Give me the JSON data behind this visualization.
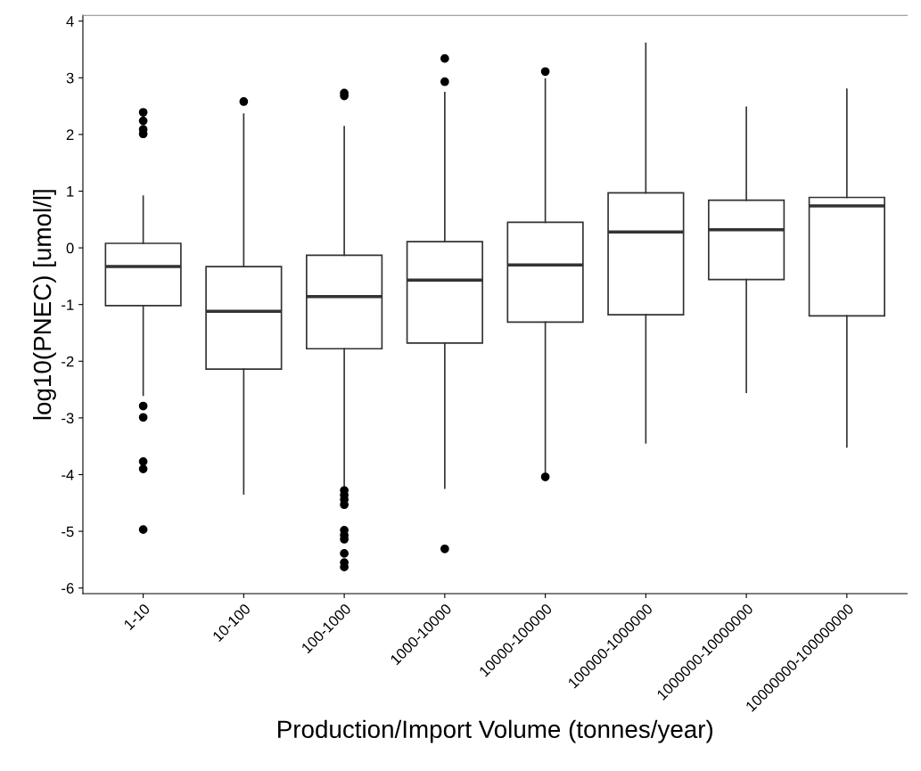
{
  "chart_data": {
    "type": "box",
    "xlabel": "Production/Import Volume (tonnes/year)",
    "ylabel": "log10(PNEC) [umol/l]",
    "categories": [
      "1-10",
      "10-100",
      "100-1000",
      "1000-10000",
      "10000-100000",
      "100000-1000000",
      "1000000-10000000",
      "10000000-100000000"
    ],
    "color": "#333333",
    "boxes": [
      {
        "low": -2.6,
        "q1": -1.02,
        "median": -0.33,
        "q3": 0.08,
        "high": 0.91,
        "outliers": [
          2.39,
          2.24,
          2.09,
          2.01,
          -2.79,
          -2.99,
          -3.77,
          -3.9,
          -4.97
        ]
      },
      {
        "low": -4.34,
        "q1": -2.14,
        "median": -1.12,
        "q3": -0.33,
        "high": 2.36,
        "outliers": [
          2.58
        ]
      },
      {
        "low": -4.26,
        "q1": -1.78,
        "median": -0.86,
        "q3": -0.13,
        "high": 2.14,
        "outliers": [
          2.73,
          2.68,
          -4.28,
          -4.36,
          -4.44,
          -4.53,
          -4.98,
          -5.07,
          -5.14,
          -5.39,
          -5.55,
          -5.63
        ]
      },
      {
        "low": -4.24,
        "q1": -1.68,
        "median": -0.57,
        "q3": 0.11,
        "high": 2.74,
        "outliers": [
          3.34,
          2.93,
          -5.31
        ]
      },
      {
        "low": -3.98,
        "q1": -1.31,
        "median": -0.3,
        "q3": 0.45,
        "high": 2.98,
        "outliers": [
          3.11,
          -4.04
        ]
      },
      {
        "low": -3.44,
        "q1": -1.18,
        "median": 0.28,
        "q3": 0.97,
        "high": 3.61
      },
      {
        "low": -2.55,
        "q1": -0.56,
        "median": 0.32,
        "q3": 0.84,
        "high": 2.48
      },
      {
        "low": -3.51,
        "q1": -1.2,
        "median": 0.74,
        "q3": 0.89,
        "high": 2.8
      }
    ],
    "ylim": [
      -6.1,
      4.1
    ],
    "yticks": [
      -6,
      -5,
      -4,
      -3,
      -2,
      -1,
      0,
      1,
      2,
      3,
      4
    ],
    "grid": false
  }
}
